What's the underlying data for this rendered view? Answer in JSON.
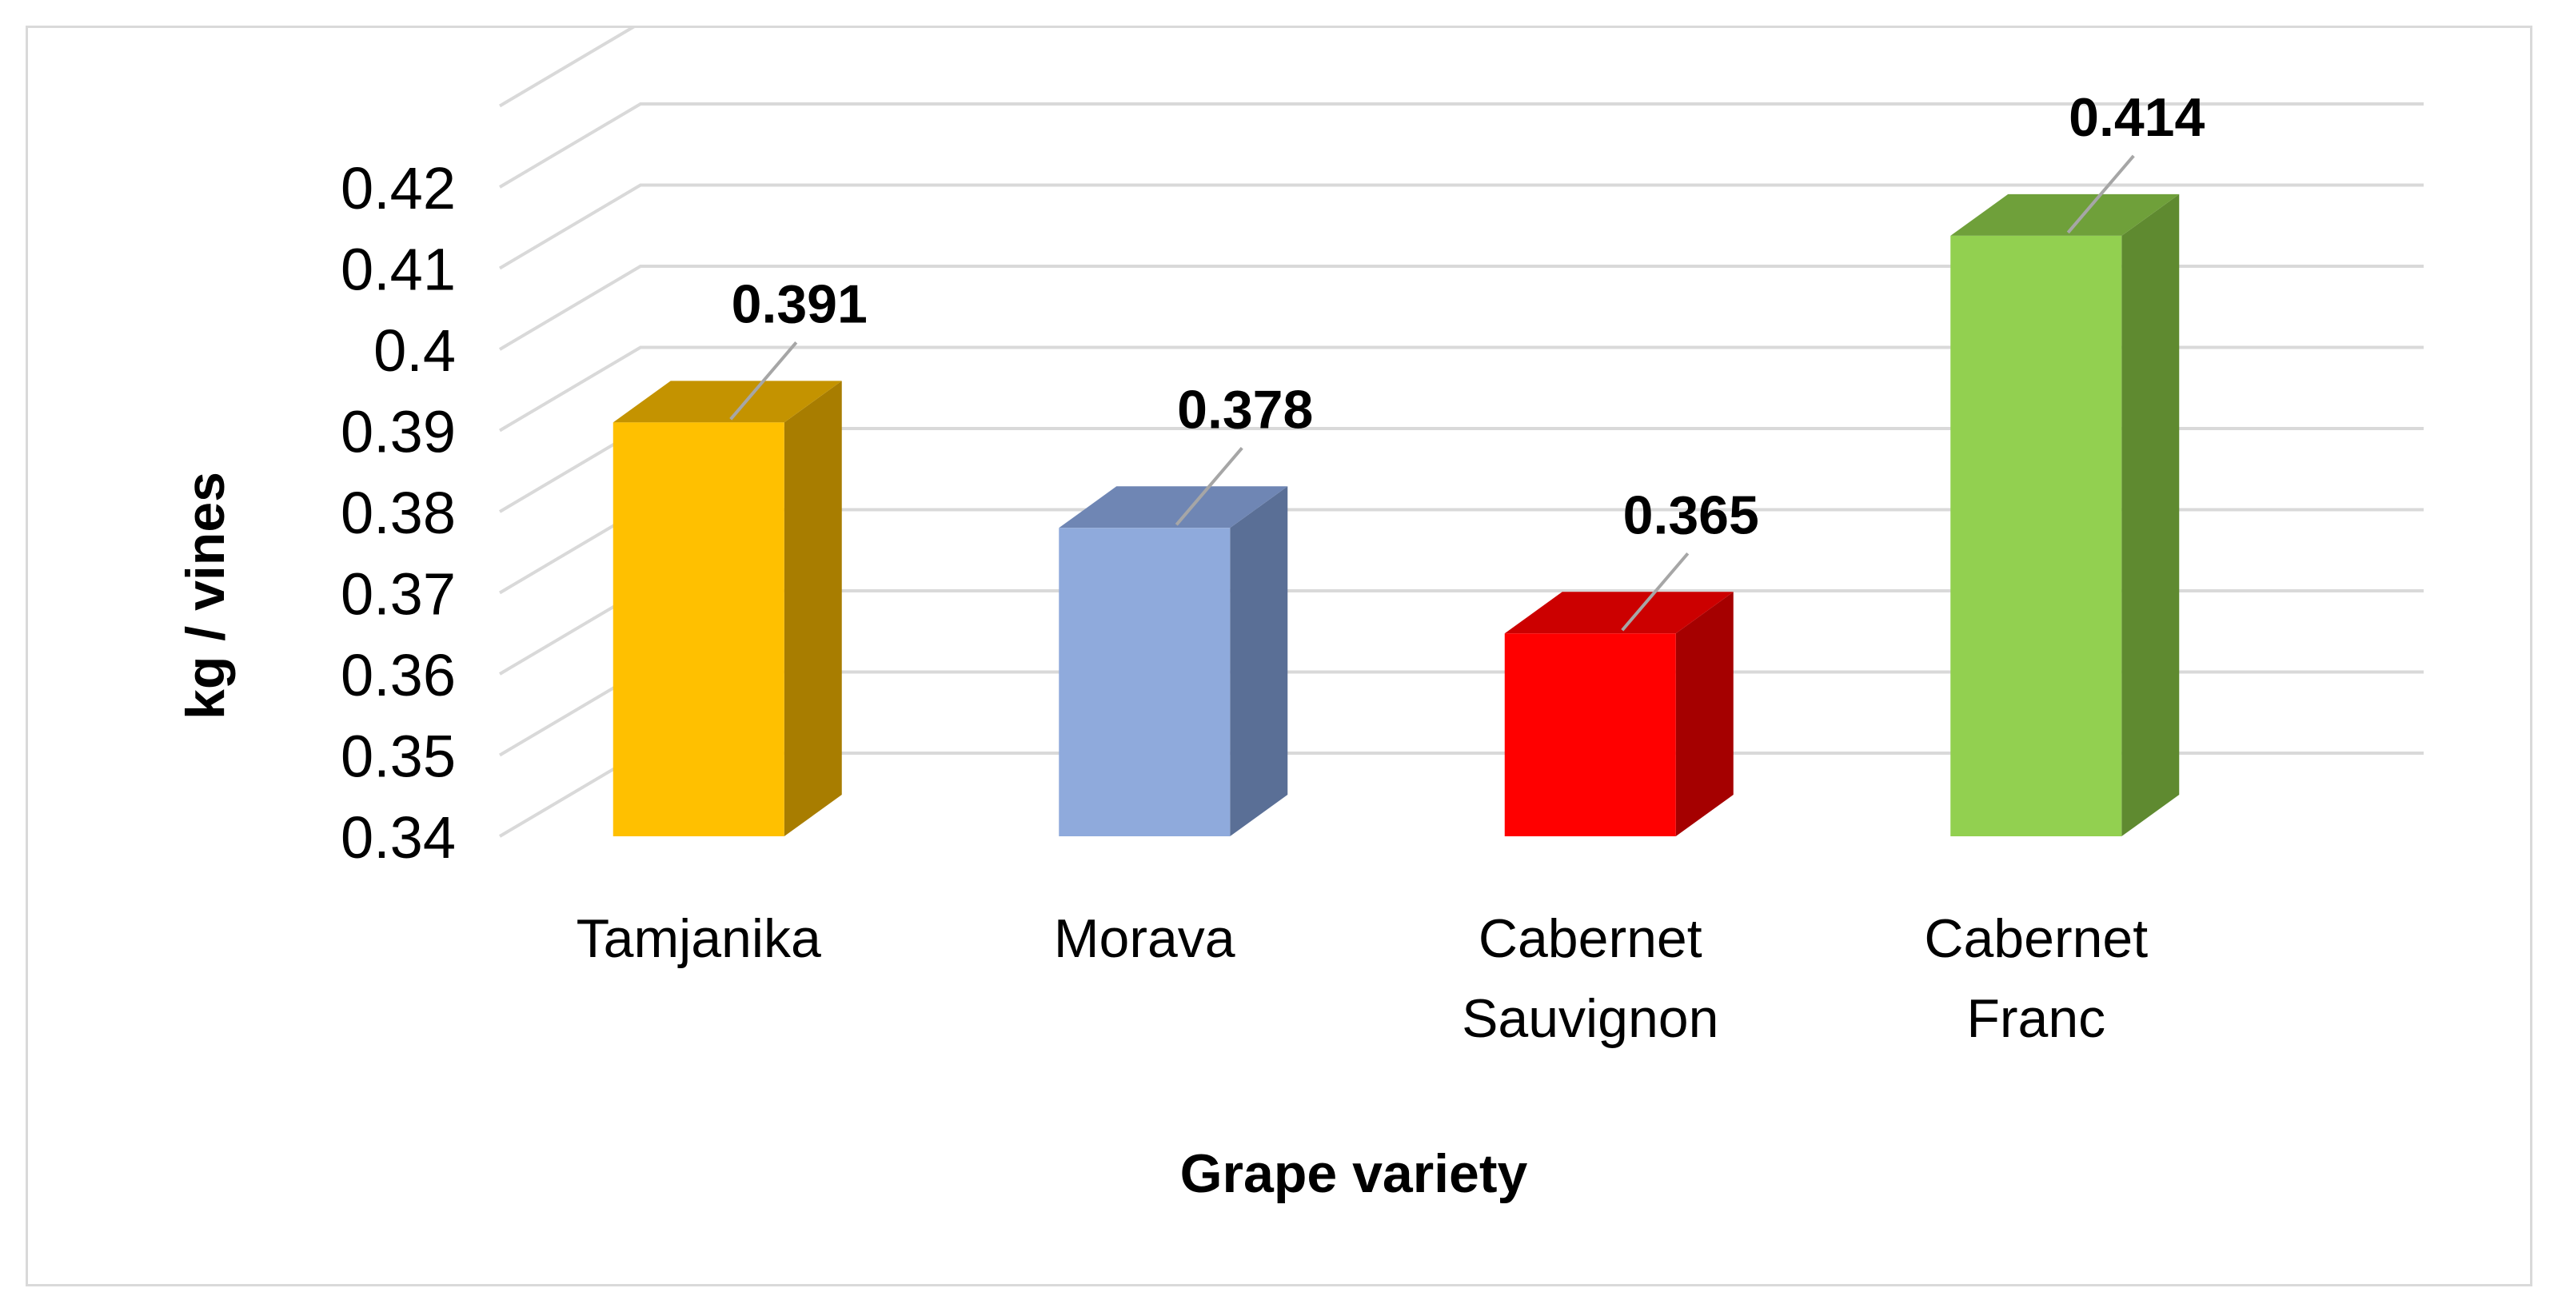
{
  "chart_data": {
    "type": "bar",
    "style": "3d-column",
    "categories": [
      "Tamjanika",
      "Morava",
      "Cabernet Sauvignon",
      "Cabernet Franc"
    ],
    "category_lines": [
      [
        "Tamjanika"
      ],
      [
        "Morava"
      ],
      [
        "Cabernet",
        "Sauvignon"
      ],
      [
        "Cabernet",
        "Franc"
      ]
    ],
    "values": [
      0.391,
      0.378,
      0.365,
      0.414
    ],
    "value_labels": [
      "0.391",
      "0.378",
      "0.365",
      "0.414"
    ],
    "yticks": [
      "0.34",
      "0.35",
      "0.36",
      "0.37",
      "0.38",
      "0.39",
      "0.4",
      "0.41",
      "0.42"
    ],
    "ylim": [
      0.34,
      0.42
    ],
    "xlabel": "Grape variety",
    "ylabel": "kg / vines",
    "grid": true,
    "legend": "none",
    "colors": {
      "front": [
        "#ffc000",
        "#8faadc",
        "#ff0000",
        "#92d050"
      ],
      "side": [
        "#a87d00",
        "#5a6f96",
        "#a50000",
        "#5f8a30"
      ],
      "top": [
        "#c49300",
        "#6f86b4",
        "#cc0000",
        "#6fa03a"
      ],
      "grid": "#d9d9d9",
      "leader": "#a6a6a6"
    }
  }
}
